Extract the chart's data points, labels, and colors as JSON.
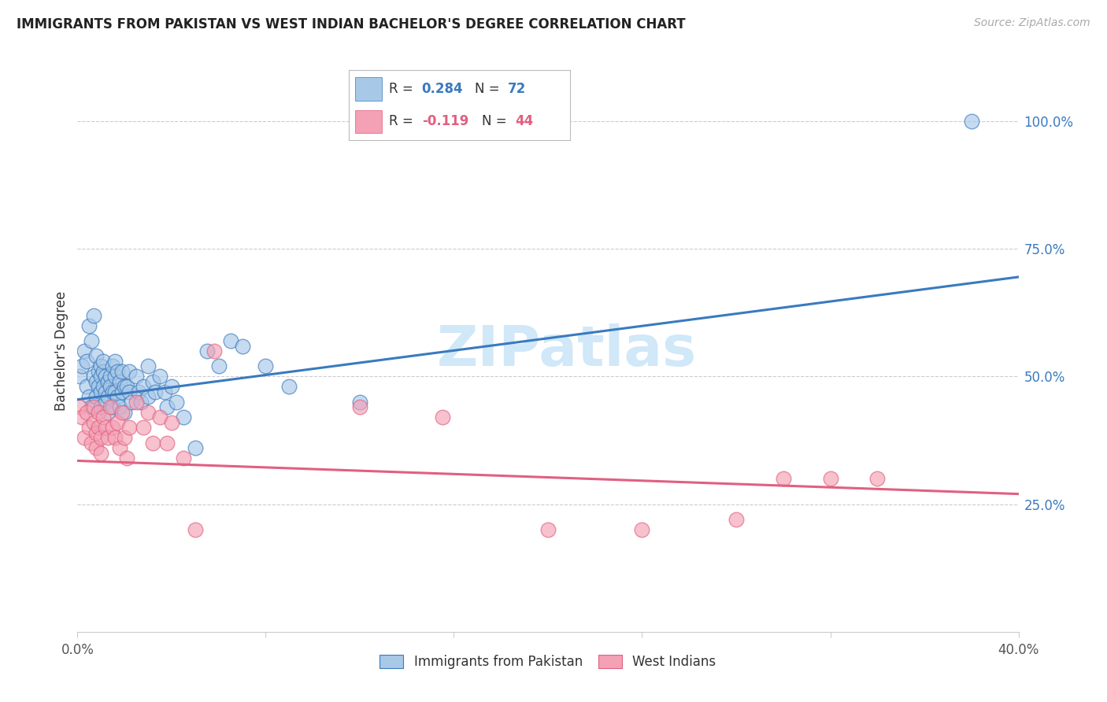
{
  "title": "IMMIGRANTS FROM PAKISTAN VS WEST INDIAN BACHELOR'S DEGREE CORRELATION CHART",
  "source": "Source: ZipAtlas.com",
  "ylabel": "Bachelor's Degree",
  "ytick_labels": [
    "25.0%",
    "50.0%",
    "75.0%",
    "100.0%"
  ],
  "ytick_positions": [
    0.25,
    0.5,
    0.75,
    1.0
  ],
  "xmin": 0.0,
  "xmax": 0.4,
  "ymin": 0.0,
  "ymax": 1.1,
  "legend_r1_label": "R = ",
  "legend_r1_val": "0.284",
  "legend_n1_label": "N = ",
  "legend_n1_val": "72",
  "legend_r2_label": "R = ",
  "legend_r2_val": "-0.119",
  "legend_n2_label": "N = ",
  "legend_n2_val": "44",
  "blue_color": "#a8c8e8",
  "pink_color": "#f4a0b5",
  "blue_line_color": "#3a7abf",
  "pink_line_color": "#e06080",
  "blue_text_color": "#3a7abf",
  "pink_text_color": "#e06080",
  "watermark_text": "ZIPatlas",
  "watermark_color": "#d0e8f8",
  "pakistan_x": [
    0.001,
    0.002,
    0.003,
    0.004,
    0.004,
    0.005,
    0.005,
    0.006,
    0.006,
    0.007,
    0.007,
    0.008,
    0.008,
    0.008,
    0.009,
    0.009,
    0.01,
    0.01,
    0.01,
    0.01,
    0.011,
    0.011,
    0.011,
    0.012,
    0.012,
    0.012,
    0.013,
    0.013,
    0.013,
    0.014,
    0.014,
    0.015,
    0.015,
    0.015,
    0.016,
    0.016,
    0.016,
    0.017,
    0.017,
    0.018,
    0.018,
    0.019,
    0.019,
    0.02,
    0.02,
    0.021,
    0.022,
    0.022,
    0.023,
    0.025,
    0.026,
    0.027,
    0.028,
    0.03,
    0.03,
    0.032,
    0.033,
    0.035,
    0.037,
    0.038,
    0.04,
    0.042,
    0.045,
    0.05,
    0.055,
    0.06,
    0.065,
    0.07,
    0.08,
    0.09,
    0.12,
    0.38
  ],
  "pakistan_y": [
    0.5,
    0.52,
    0.55,
    0.48,
    0.53,
    0.6,
    0.46,
    0.57,
    0.44,
    0.62,
    0.5,
    0.54,
    0.49,
    0.46,
    0.51,
    0.48,
    0.52,
    0.5,
    0.47,
    0.44,
    0.48,
    0.51,
    0.53,
    0.47,
    0.5,
    0.45,
    0.49,
    0.46,
    0.43,
    0.5,
    0.48,
    0.52,
    0.47,
    0.44,
    0.5,
    0.47,
    0.53,
    0.46,
    0.51,
    0.49,
    0.44,
    0.47,
    0.51,
    0.48,
    0.43,
    0.48,
    0.47,
    0.51,
    0.45,
    0.5,
    0.47,
    0.45,
    0.48,
    0.52,
    0.46,
    0.49,
    0.47,
    0.5,
    0.47,
    0.44,
    0.48,
    0.45,
    0.42,
    0.36,
    0.55,
    0.52,
    0.57,
    0.56,
    0.52,
    0.48,
    0.45,
    1.0
  ],
  "westindian_x": [
    0.001,
    0.002,
    0.003,
    0.004,
    0.005,
    0.006,
    0.007,
    0.007,
    0.008,
    0.008,
    0.009,
    0.009,
    0.01,
    0.01,
    0.011,
    0.012,
    0.013,
    0.014,
    0.015,
    0.016,
    0.017,
    0.018,
    0.019,
    0.02,
    0.021,
    0.022,
    0.025,
    0.028,
    0.03,
    0.032,
    0.035,
    0.038,
    0.04,
    0.045,
    0.05,
    0.058,
    0.12,
    0.155,
    0.2,
    0.24,
    0.28,
    0.3,
    0.32,
    0.34
  ],
  "westindian_y": [
    0.44,
    0.42,
    0.38,
    0.43,
    0.4,
    0.37,
    0.44,
    0.41,
    0.39,
    0.36,
    0.43,
    0.4,
    0.38,
    0.35,
    0.42,
    0.4,
    0.38,
    0.44,
    0.4,
    0.38,
    0.41,
    0.36,
    0.43,
    0.38,
    0.34,
    0.4,
    0.45,
    0.4,
    0.43,
    0.37,
    0.42,
    0.37,
    0.41,
    0.34,
    0.2,
    0.55,
    0.44,
    0.42,
    0.2,
    0.2,
    0.22,
    0.3,
    0.3,
    0.3
  ]
}
